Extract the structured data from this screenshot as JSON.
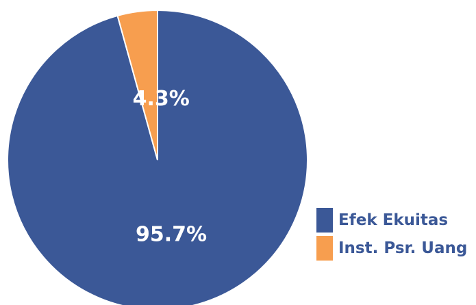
{
  "chart_data": {
    "type": "pie",
    "title": "",
    "slices": [
      {
        "label": "Efek Ekuitas",
        "value": 95.7,
        "display": "95.7%",
        "color": "#3B5897"
      },
      {
        "label": "Inst. Psr. Uang",
        "value": 4.3,
        "display": "4.3%",
        "color": "#F79E4F"
      }
    ],
    "start": "12 o'clock",
    "direction": "clockwise",
    "legend_position": "bottom-right",
    "legend_text_color": "#3B5897",
    "label_color": "#FFFFFF",
    "slice_border_color": "#FFFFFF"
  }
}
